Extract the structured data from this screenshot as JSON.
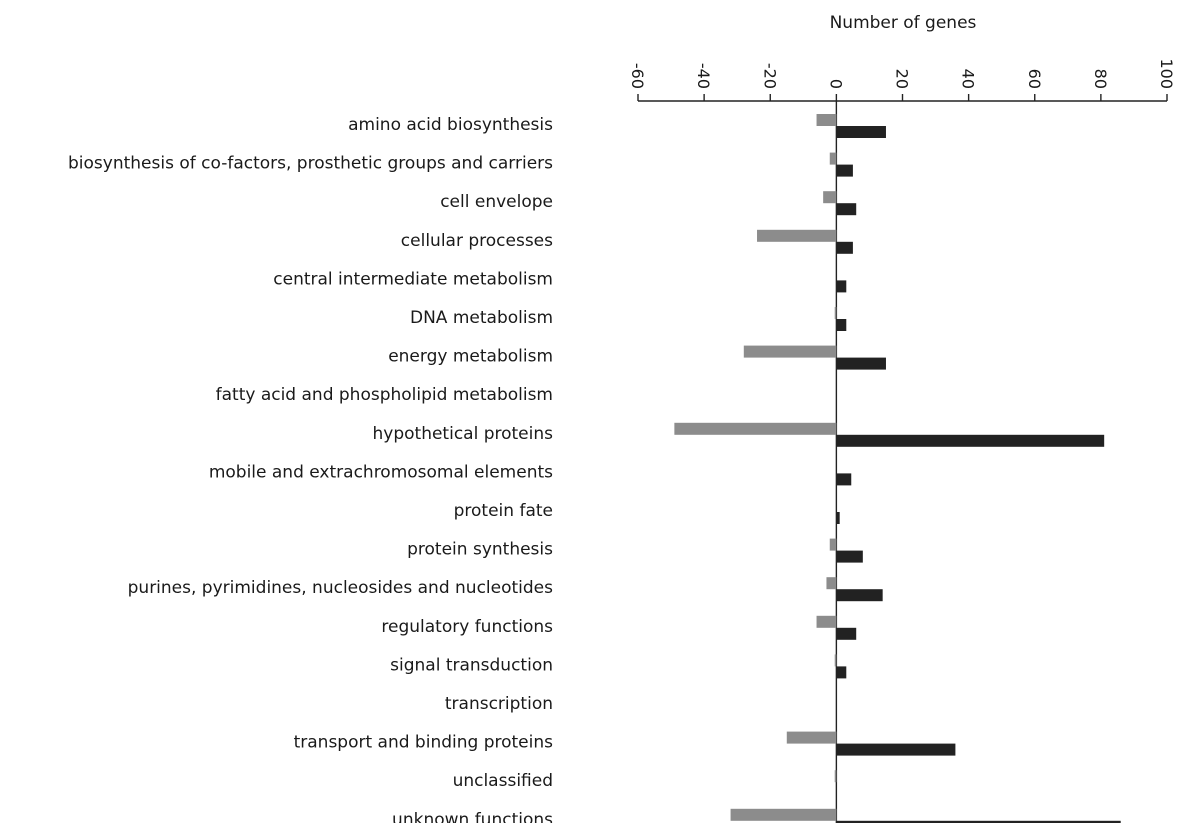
{
  "chart_data": {
    "type": "bar",
    "orientation": "horizontal",
    "title": "",
    "xlabel": "Number of genes",
    "ylabel": "",
    "xlim": [
      -60,
      100
    ],
    "xticks": [
      -60,
      -40,
      -20,
      0,
      20,
      40,
      60,
      80,
      100
    ],
    "xtick_labels": [
      "-60",
      "-40",
      "-20",
      "0",
      "20",
      "40",
      "60",
      "80",
      "100"
    ],
    "x_axis_position": "top",
    "tick_label_rotation": "rotated 90° clockwise",
    "grid": false,
    "legend": "none",
    "categories": [
      "amino acid biosynthesis",
      "biosynthesis of co-factors, prosthetic groups and carriers",
      "cell envelope",
      "cellular processes",
      "central intermediate metabolism",
      "DNA metabolism",
      "energy metabolism",
      "fatty acid and phospholipid metabolism",
      "hypothetical proteins",
      "mobile and extrachromosomal elements",
      "protein fate",
      "protein synthesis",
      "purines, pyrimidines, nucleosides and nucleotides",
      "regulatory functions",
      "signal transduction",
      "transcription",
      "transport and binding proteins",
      "unclassified",
      "unknown functions"
    ],
    "series": [
      {
        "color": "#8c8c8c",
        "values": [
          -6,
          -2,
          -4,
          -24,
          0,
          -0.5,
          -28,
          0,
          -49,
          0,
          0,
          -2,
          -3,
          -6,
          -0.5,
          0,
          -15,
          -0.5,
          -32
        ]
      },
      {
        "color": "#222222",
        "values": [
          15,
          5,
          6,
          5,
          3,
          3,
          15,
          0,
          81,
          4.5,
          1,
          8,
          14,
          6,
          3,
          0,
          36,
          0,
          86
        ]
      }
    ]
  }
}
